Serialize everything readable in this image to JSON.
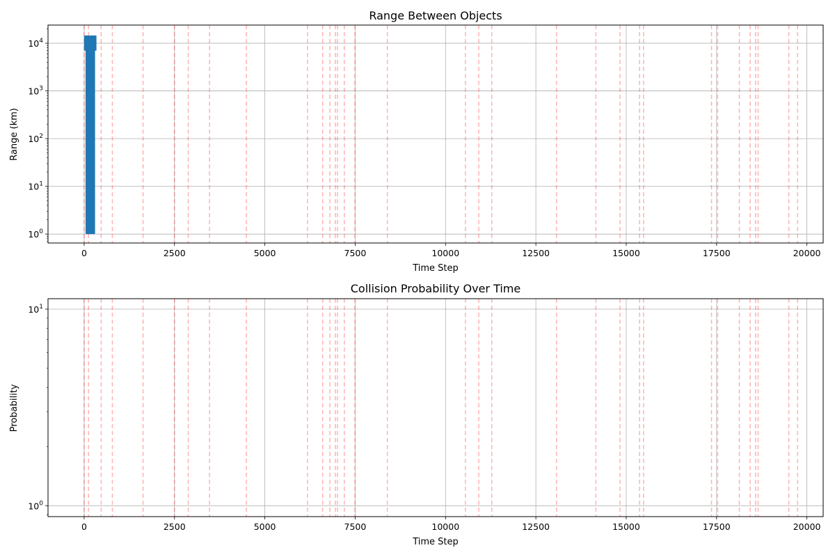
{
  "chart_data": [
    {
      "type": "line",
      "title": "Range Between Objects",
      "xlabel": "Time Step",
      "ylabel": "Range (km)",
      "yscale": "log",
      "xlim": [
        -1000,
        20450
      ],
      "ylim": [
        0.65,
        24000
      ],
      "xticks": [
        0,
        2500,
        5000,
        7500,
        10000,
        12500,
        15000,
        17500,
        20000
      ],
      "yticks": [
        {
          "value": 1,
          "base": "10",
          "exp": "0"
        },
        {
          "value": 10,
          "base": "10",
          "exp": "1"
        },
        {
          "value": 100,
          "base": "10",
          "exp": "2"
        },
        {
          "value": 1000,
          "base": "10",
          "exp": "3"
        },
        {
          "value": 10000,
          "base": "10",
          "exp": "4"
        }
      ],
      "grid": true,
      "series": [
        {
          "color": "#1f77b4",
          "x_range": [
            0,
            340
          ],
          "y_range": [
            1,
            14500
          ],
          "cap": {
            "x_range": [
              0,
              340
            ],
            "y_range": [
              7000,
              14500
            ]
          }
        }
      ],
      "event_markers": {
        "style": "vertical dashed lines",
        "color": "#ff0000",
        "x": [
          0,
          120,
          470,
          780,
          1630,
          2500,
          2880,
          3470,
          4490,
          6180,
          6600,
          6800,
          6950,
          7010,
          7200,
          7490,
          8390,
          10550,
          10920,
          11280,
          13070,
          14160,
          14830,
          15370,
          15480,
          17360,
          17530,
          18130,
          18430,
          18580,
          18650,
          19500,
          19740
        ]
      }
    },
    {
      "type": "line",
      "title": "Collision Probability Over Time",
      "xlabel": "Time Step",
      "ylabel": "Probability",
      "yscale": "log",
      "xlim": [
        -1000,
        20450
      ],
      "ylim": [
        0.88,
        11.3
      ],
      "xticks": [
        0,
        2500,
        5000,
        7500,
        10000,
        12500,
        15000,
        17500,
        20000
      ],
      "yticks": [
        {
          "value": 1,
          "base": "10",
          "exp": "0"
        },
        {
          "value": 10,
          "base": "10",
          "exp": "1"
        }
      ],
      "grid": true,
      "series": [],
      "event_markers": {
        "style": "vertical dashed lines",
        "color": "#ff0000",
        "x": [
          0,
          120,
          470,
          780,
          1630,
          2500,
          2880,
          3470,
          4490,
          6180,
          6600,
          6800,
          6950,
          7010,
          7200,
          7490,
          8390,
          10550,
          10920,
          11280,
          13070,
          14160,
          14830,
          15370,
          15480,
          17360,
          17530,
          18130,
          18430,
          18580,
          18650,
          19500,
          19740
        ]
      }
    }
  ]
}
